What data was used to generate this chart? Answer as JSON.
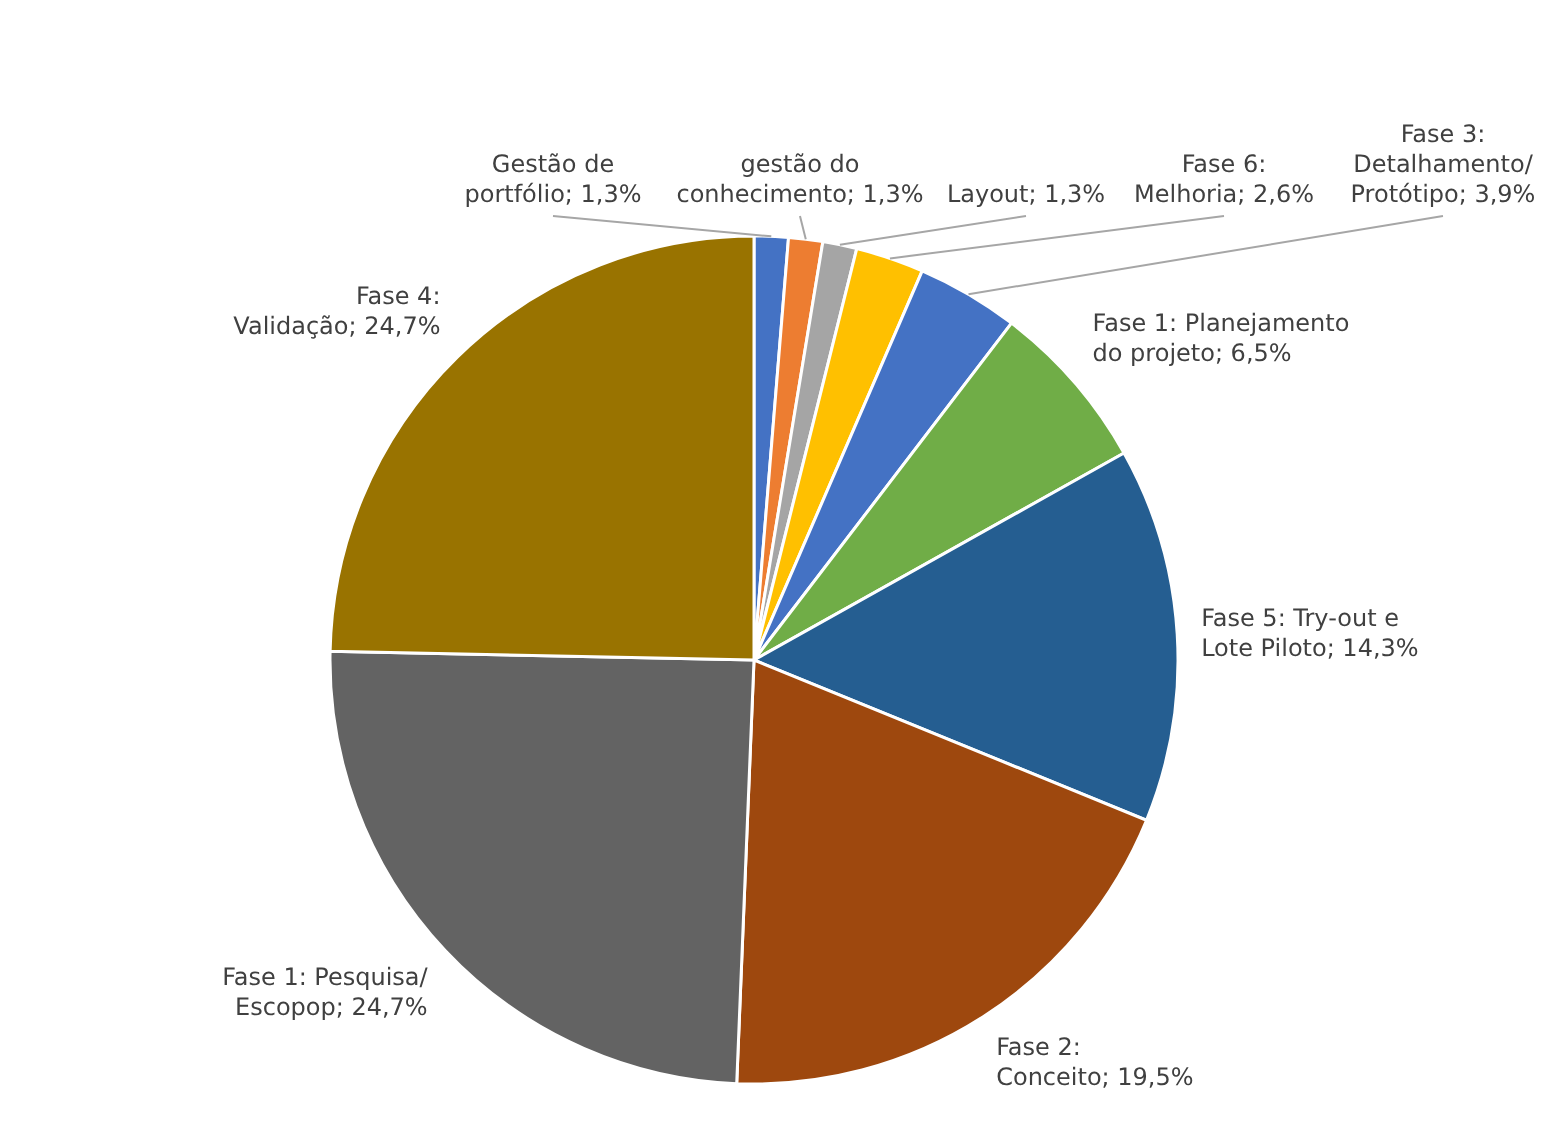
{
  "chart_data": {
    "type": "pie",
    "categories": [
      "Gestão de portfólio",
      "gestão do conhecimento",
      "Layout",
      "Fase 6: Melhoria",
      "Fase 3: Detalhamento/Protótipo",
      "Fase 1: Planejamento do projeto",
      "Fase 5: Try-out e Lote Piloto",
      "Fase 2: Conceito",
      "Fase 1: Pesquisa/Escopop",
      "Fase 4: Validação"
    ],
    "values": [
      1.3,
      1.3,
      1.3,
      2.6,
      3.9,
      6.5,
      14.3,
      19.5,
      24.7,
      24.7
    ],
    "value_labels": [
      "1,3%",
      "1,3%",
      "1,3%",
      "2,6%",
      "3,9%",
      "6,5%",
      "14,3%",
      "19,5%",
      "24,7%",
      "24,7%"
    ],
    "colors": [
      "#4472c4",
      "#ed7d31",
      "#a5a5a5",
      "#ffc000",
      "#4472c4",
      "#70ad47",
      "#255e91",
      "#9e480e",
      "#636363",
      "#997300"
    ]
  }
}
